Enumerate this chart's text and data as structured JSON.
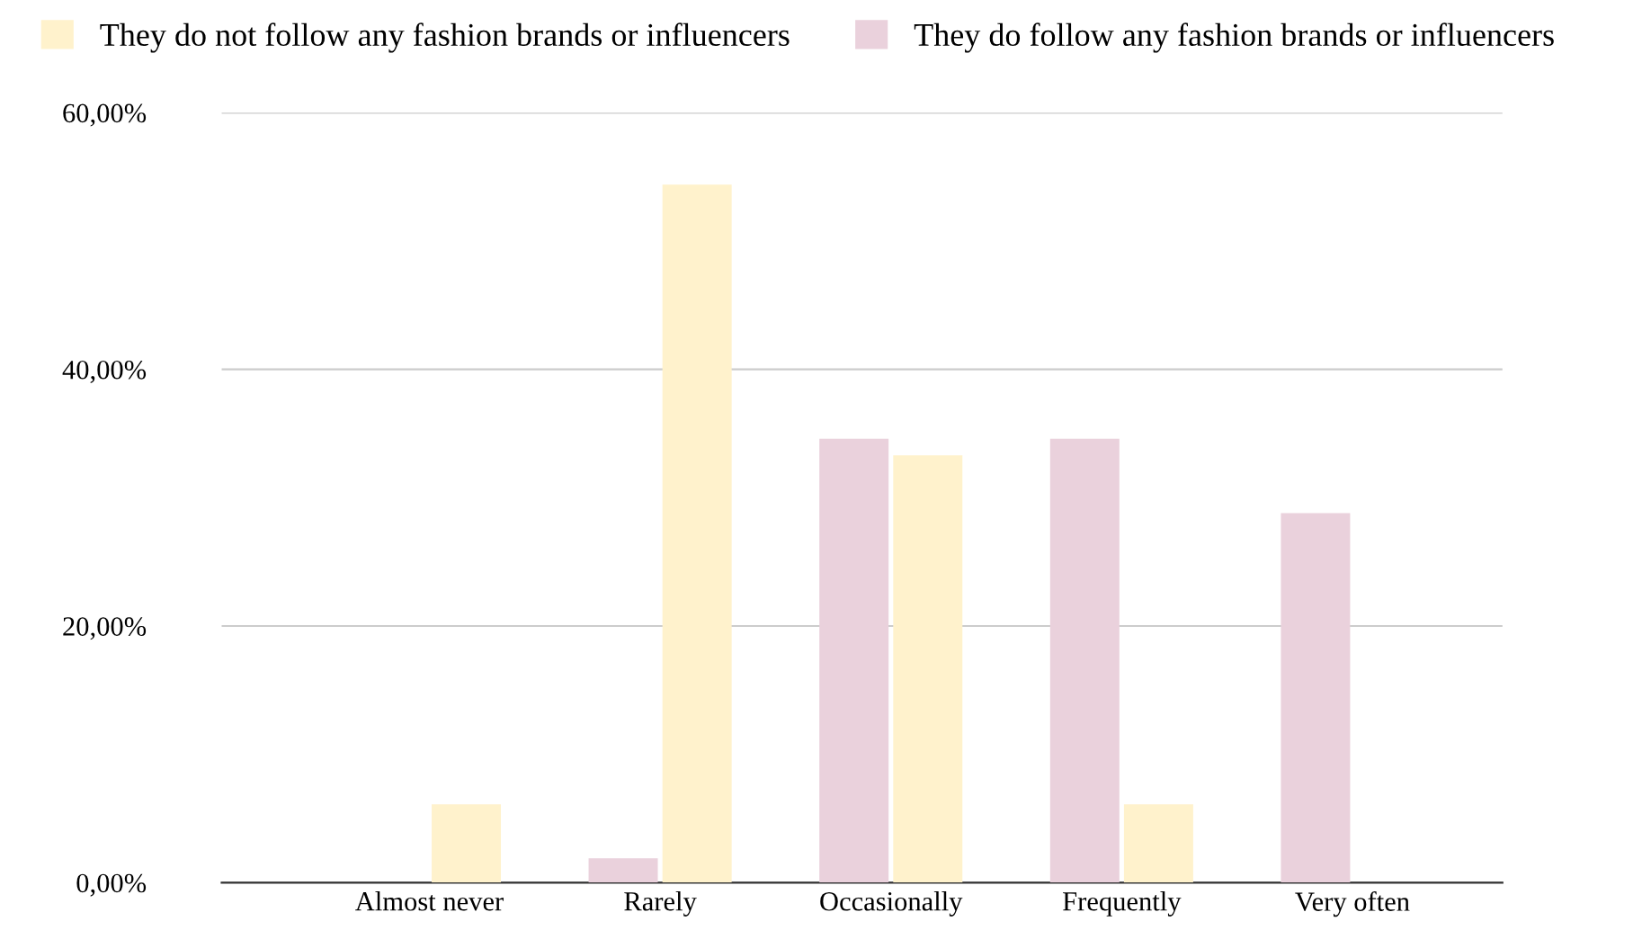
{
  "chart_data": {
    "type": "bar",
    "categories": [
      "Almost never",
      "Rarely",
      "Occasionally",
      "Frequently",
      "Very often"
    ],
    "series": [
      {
        "name": "They do follow any fashion brands or influencers",
        "color": "#ead1dc",
        "values": [
          0,
          1.9,
          34.6,
          34.6,
          28.8
        ]
      },
      {
        "name": "They do not follow any fashion brands or influencers",
        "color": "#fff2cc",
        "values": [
          6.1,
          54.4,
          33.3,
          6.1,
          0
        ]
      }
    ],
    "ylim": [
      0,
      60
    ],
    "yticks": [
      {
        "value": 0,
        "label": "0,00%"
      },
      {
        "value": 20,
        "label": "20,00%"
      },
      {
        "value": 40,
        "label": "40,00%"
      },
      {
        "value": 60,
        "label": "60,00%"
      }
    ],
    "grid": "y",
    "legend": "top"
  }
}
